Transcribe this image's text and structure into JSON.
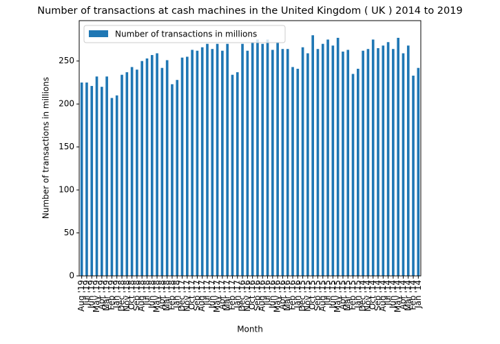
{
  "chart_data": {
    "type": "bar",
    "title": "Number of transactions at cash machines in the United Kingdom ( UK ) 2014 to 2019",
    "x_label": "Month",
    "y_label": "Number of transactions in millions",
    "categories": [
      "Aug '19",
      "Jul '19",
      "Jun '19",
      "May '19",
      "Apr '19",
      "Mar '19",
      "Feb '19",
      "Jan '19",
      "Dec '18",
      "Nov '18",
      "Oct '18",
      "Sep '18",
      "Aug '18",
      "Jul '18",
      "Jun '18",
      "May '18",
      "Apr '18",
      "Mar '18",
      "Feb '18",
      "Jan '18",
      "Dec '17",
      "Nov '17",
      "Oct '17",
      "Sep '17",
      "Aug '17",
      "Jul '17",
      "Jun '17",
      "May '17",
      "Apr '17",
      "Mar '17",
      "Feb '17",
      "Jan '17",
      "Dec '16",
      "Nov '16",
      "Oct '16",
      "Sep '16",
      "Aug '16",
      "Jul '16",
      "Jun '16",
      "May '16",
      "Apr '16",
      "Mar '16",
      "Feb '16",
      "Jan '16",
      "Dec '15",
      "Nov '15",
      "Oct '15",
      "Sep '15",
      "Aug '15",
      "Jul '15",
      "Jun '15",
      "May '15",
      "Apr '15",
      "Mar '15",
      "Feb '15",
      "Jan '15",
      "Dec '14",
      "Nov '14",
      "Oct '14",
      "Sep '14",
      "Aug '14",
      "Jul '14",
      "Jun '14",
      "May '14",
      "Apr '14",
      "Mar '14",
      "Feb '14",
      "Jan '14"
    ],
    "series": [
      {
        "name": "Number of transactions in millions",
        "color": "#1f77b4",
        "values": [
          225,
          225,
          221,
          232,
          220,
          232,
          207,
          210,
          234,
          237,
          243,
          240,
          250,
          253,
          257,
          259,
          242,
          251,
          223,
          228,
          254,
          255,
          263,
          262,
          266,
          270,
          264,
          270,
          262,
          270,
          234,
          237,
          270,
          262,
          272,
          275,
          270,
          275,
          263,
          272,
          264,
          264,
          243,
          241,
          266,
          259,
          280,
          264,
          270,
          275,
          268,
          277,
          261,
          263,
          235,
          241,
          262,
          264,
          275,
          265,
          268,
          272,
          264,
          277,
          259,
          268,
          233,
          242
        ]
      }
    ],
    "ylim": [
      0,
      297
    ],
    "yticks": [
      0,
      50,
      100,
      150,
      200,
      250
    ],
    "legend": "upper left"
  }
}
